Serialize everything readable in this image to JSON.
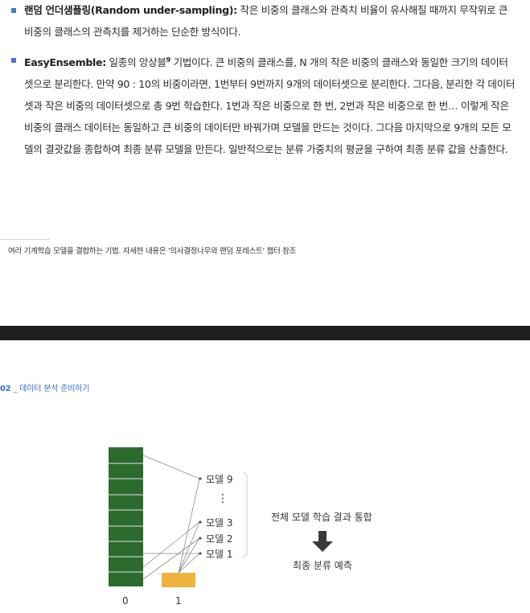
{
  "items": [
    {
      "term": "랜덤 언더샘플링(Random under-sampling):",
      "body": " 작은 비중의 클래스와 관측치 비율이 유사해질 때까지 무작위로 큰 비중의 클래스의 관측치를 제거하는 단순한 방식이다."
    },
    {
      "term": "EasyEnsemble:",
      "body_a": " 일종의 앙상블",
      "footnote_mark": "9",
      "body_b": " 기법이다. 큰 비중의 클래스를, N 개의 작은 비중의 클래스와 동일한 크기의 데이터셋으로 분리한다. 만약 90 : 10의 비중이라면, 1번부터 9번까지 9개의 데이터셋으로 분리한다. 그다음, 분리한 각 데이터셋과 작은 비중의 데이터셋으로 총 9번 학습한다. 1번과 작은 비중으로 한 번, 2번과 작은 비중으로 한 번… 이렇게 작은 비중의 클래스 데이터는 동일하고 큰 비중의 데이터만 바꿔가며 모델을 만드는 것이다. 그다음 마지막으로 9개의 모든 모델의 결괏값을 종합하여 최종 분류 모델을 만든다. 일반적으로는 분류 가중치의 평균을 구하여 최종 분류 값을 산출한다."
    }
  ],
  "footnote": "여러 기계학습 모델을 결합하는 기법. 자세한 내용은 '의사결정나무와 랜덤 포레스트' 챕터 참조",
  "running_head": {
    "number": "02",
    "separator": " _ ",
    "title": "데이터 분석 준비하기"
  },
  "diagram": {
    "models": [
      "모델 9",
      "⋮",
      "모델 3",
      "모델 2",
      "모델 1"
    ],
    "combine_label": "전체 모델 학습 결과 통합",
    "final_label": "최종 분류 예측",
    "x_labels": [
      "0",
      "1"
    ],
    "colors": {
      "class0": "#2d6a2d",
      "class1": "#f0b23e",
      "line": "#8a8a8a",
      "arrow": "#3a3a3a"
    }
  },
  "colors": {
    "bullet": "#4a78c2",
    "running_head": "#3a6cc0"
  }
}
